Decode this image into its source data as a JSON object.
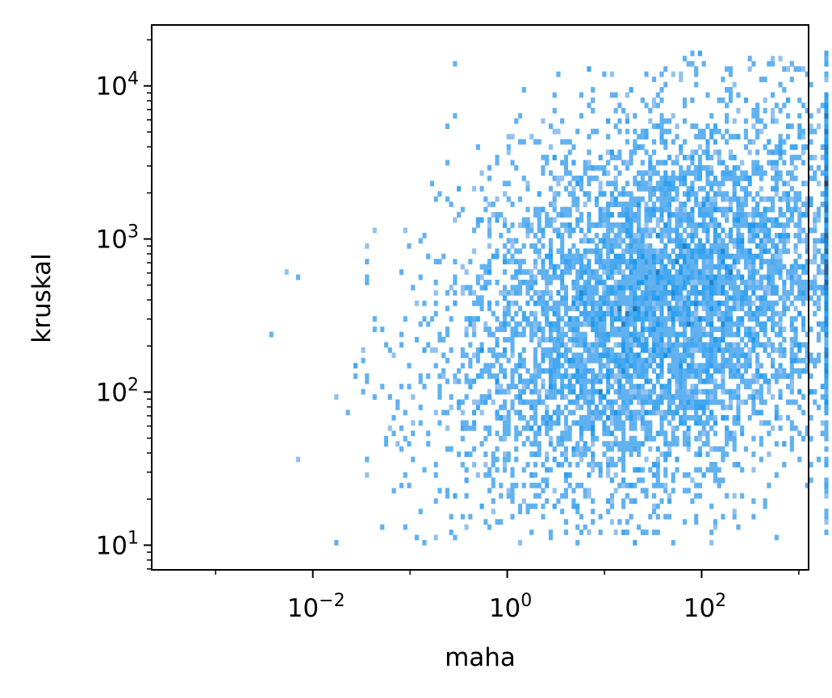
{
  "chart_data": {
    "type": "heatmap",
    "subtype": "2d-histogram",
    "title": "",
    "xlabel": "maha",
    "ylabel": "kruskal",
    "xscale": "log",
    "yscale": "log",
    "xlim": [
      0.00022,
      1260
    ],
    "ylim": [
      6.9,
      25000
    ],
    "grid": false,
    "color": "#1f9bf0",
    "x_ticks": [
      {
        "value": 0.01,
        "base": "10",
        "exp": "−2"
      },
      {
        "value": 1,
        "base": "10",
        "exp": "0"
      },
      {
        "value": 100,
        "base": "10",
        "exp": "2"
      }
    ],
    "y_ticks": [
      {
        "value": 10,
        "base": "10",
        "exp": "1"
      },
      {
        "value": 100,
        "base": "10",
        "exp": "2"
      },
      {
        "value": 1000,
        "base": "10",
        "exp": "3"
      },
      {
        "value": 10000,
        "base": "10",
        "exp": "4"
      }
    ],
    "density_peak": {
      "x": 70,
      "y": 400
    },
    "data_extent": {
      "x": [
        0.001,
        2000
      ],
      "y": [
        10,
        17000
      ]
    },
    "bins": {
      "x_count": 160,
      "y_count": 95
    }
  }
}
